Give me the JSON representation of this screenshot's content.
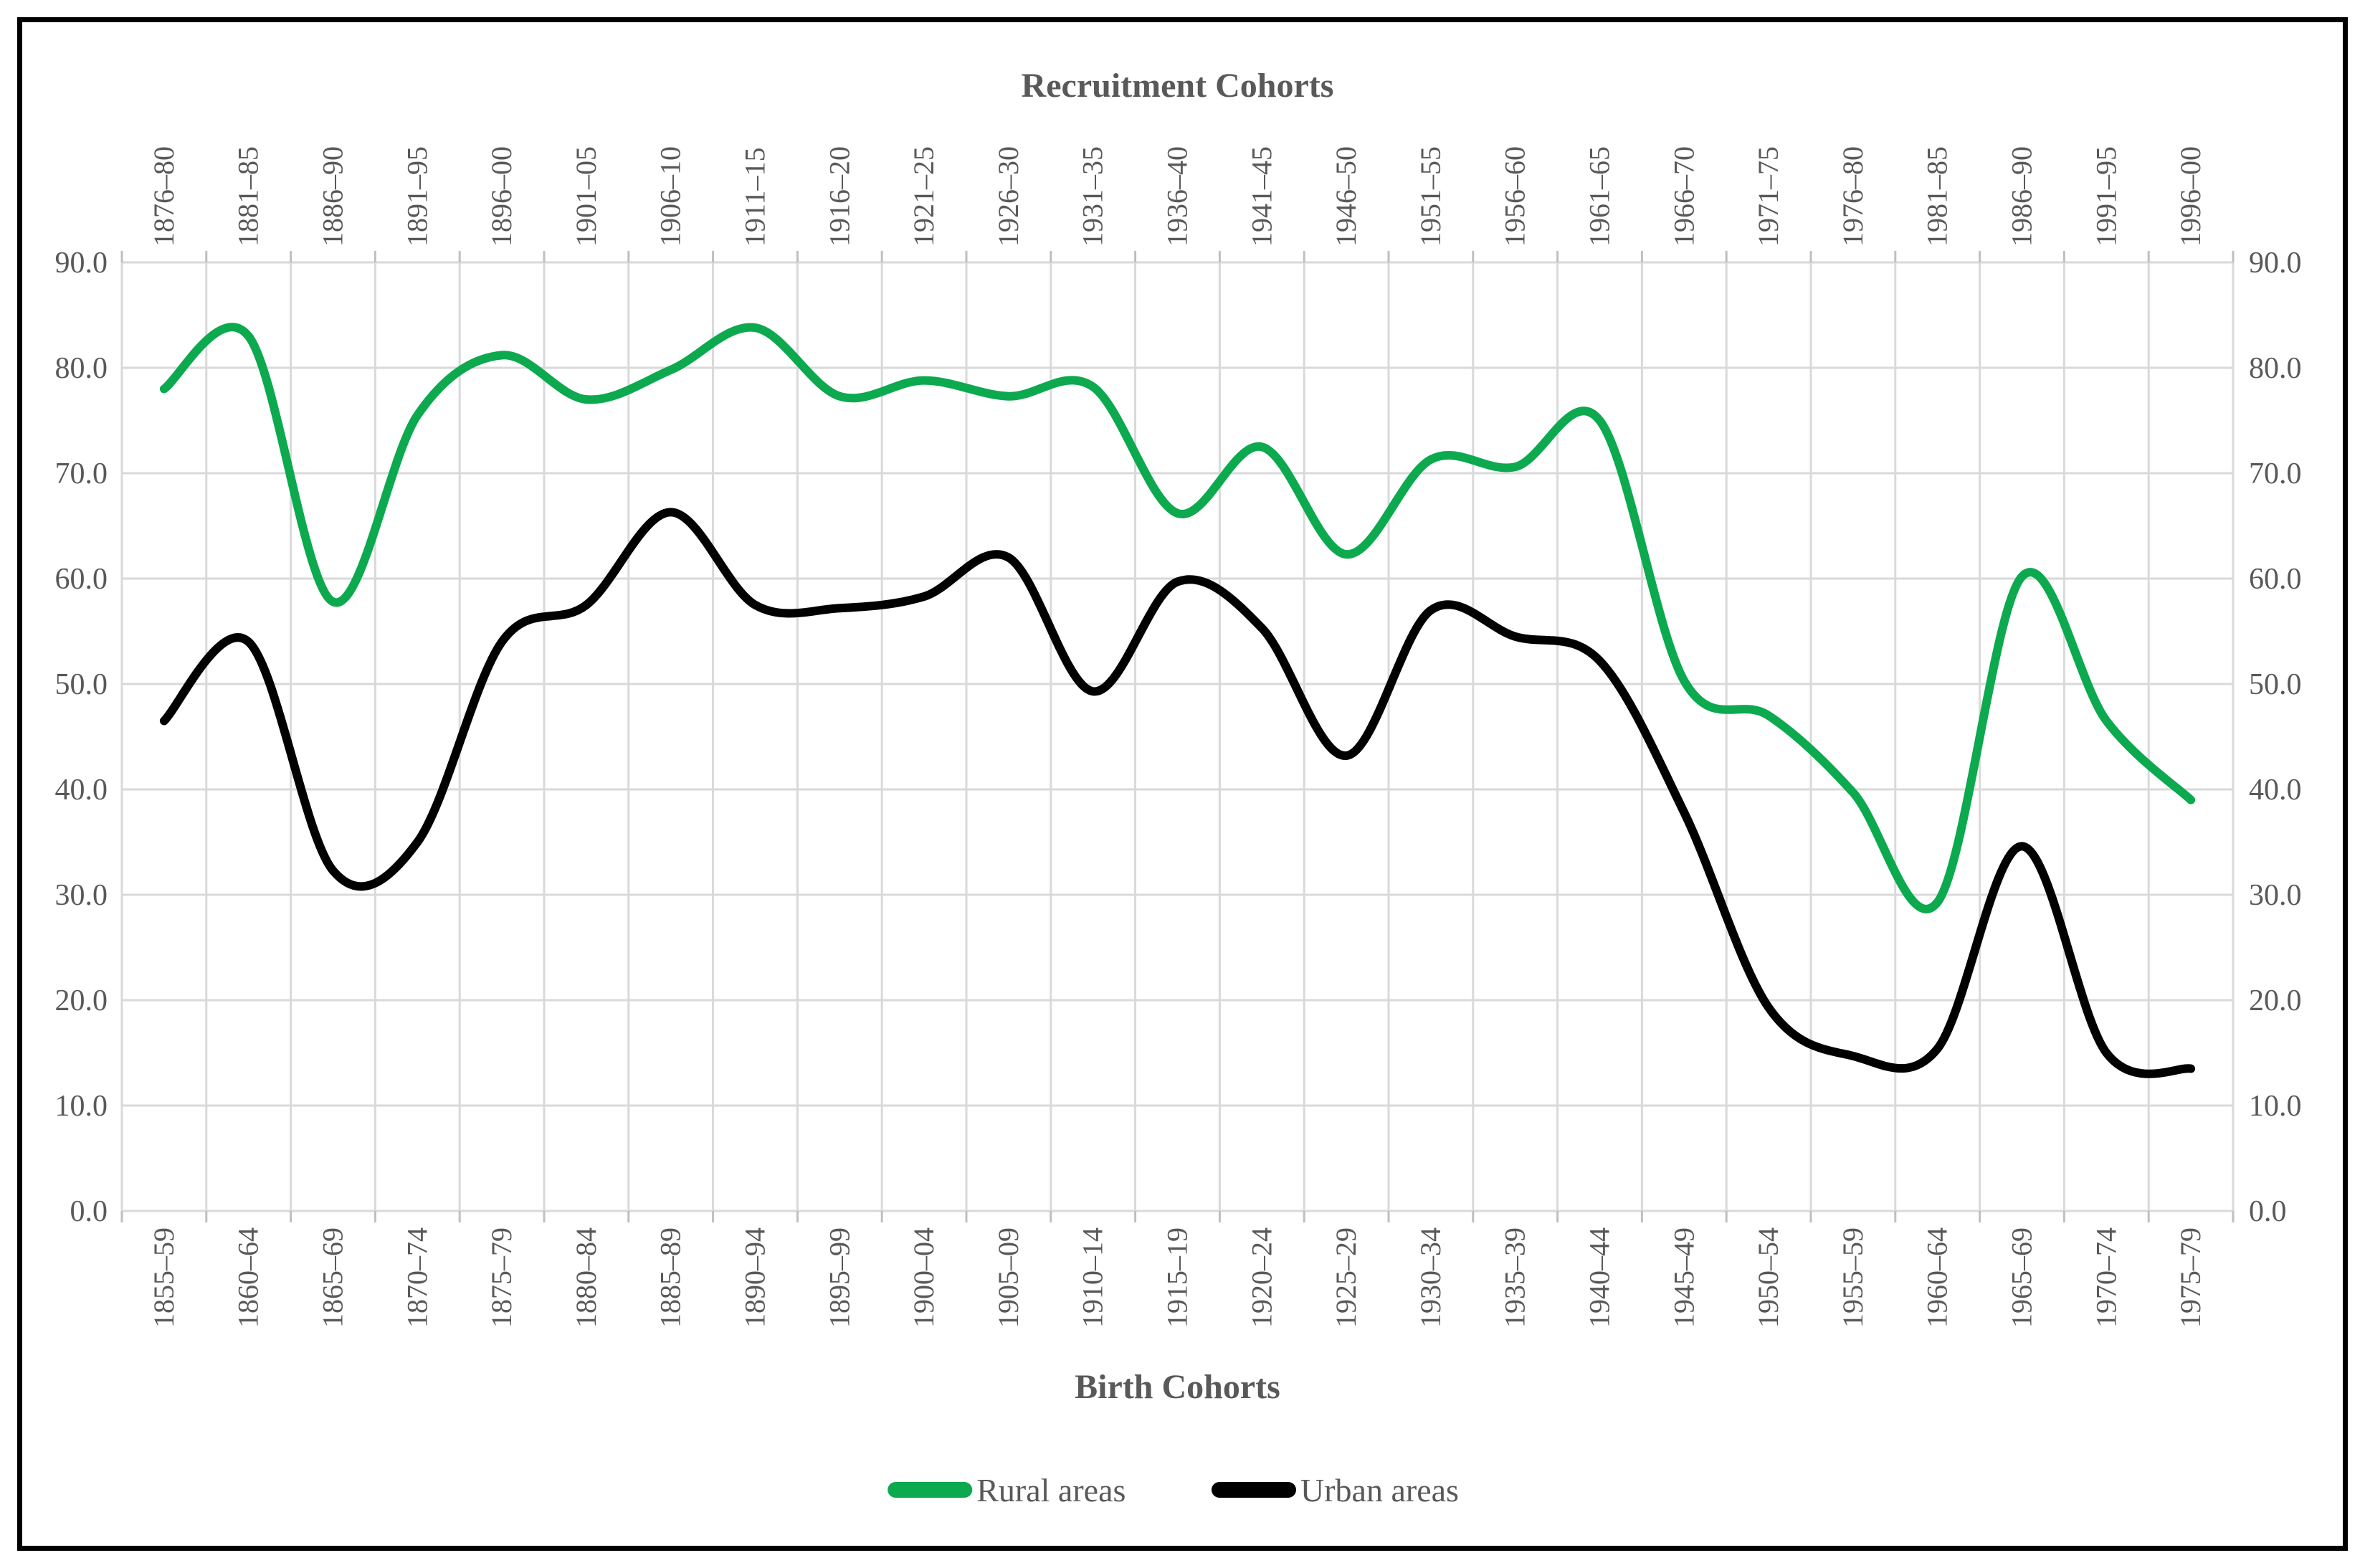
{
  "chart_data": {
    "type": "line",
    "smoothed": true,
    "title_top": "Recruitment Cohorts",
    "title_bottom": "Birth Cohorts",
    "categories_bottom": [
      "1855–59",
      "1860–64",
      "1865–69",
      "1870–74",
      "1875–79",
      "1880–84",
      "1885–89",
      "1890–94",
      "1895–99",
      "1900–04",
      "1905–09",
      "1910–14",
      "1915–19",
      "1920–24",
      "1925–29",
      "1930–34",
      "1935–39",
      "1940–44",
      "1945–49",
      "1950–54",
      "1955–59",
      "1960–64",
      "1965–69",
      "1970–74",
      "1975–79"
    ],
    "categories_top": [
      "1876–80",
      "1881–85",
      "1886–90",
      "1891–95",
      "1896–00",
      "1901–05",
      "1906–10",
      "1911–15",
      "1916–20",
      "1921–25",
      "1926–30",
      "1931–35",
      "1936–40",
      "1941–45",
      "1946–50",
      "1951–55",
      "1956–60",
      "1961–65",
      "1966–70",
      "1971–75",
      "1976–80",
      "1981–85",
      "1986–90",
      "1991–95",
      "1996–00"
    ],
    "series": [
      {
        "name": "Rural areas",
        "color": "#0CA94F",
        "values": [
          78.0,
          83.0,
          57.8,
          75.5,
          81.2,
          77.0,
          79.8,
          83.8,
          77.3,
          78.8,
          77.3,
          78.2,
          66.2,
          72.5,
          62.3,
          71.3,
          70.6,
          75.0,
          50.3,
          47.0,
          39.7,
          29.3,
          60.2,
          46.5,
          39.0
        ]
      },
      {
        "name": "Urban areas",
        "color": "#000000",
        "values": [
          46.5,
          54.0,
          32.3,
          35.0,
          54.0,
          57.5,
          66.3,
          57.5,
          57.2,
          58.3,
          62.0,
          49.3,
          59.7,
          55.3,
          43.2,
          57.0,
          54.5,
          52.2,
          37.8,
          19.3,
          14.7,
          15.4,
          34.6,
          15.0,
          13.5
        ]
      }
    ],
    "y_axis": {
      "min": 0,
      "max": 90,
      "step": 10,
      "labels": [
        "0.0",
        "10.0",
        "20.0",
        "30.0",
        "40.0",
        "50.0",
        "60.0",
        "70.0",
        "80.0",
        "90.0"
      ],
      "sides": [
        "left",
        "right"
      ]
    },
    "grid": true,
    "legend_position": "bottom",
    "colors": {
      "text": "#595959",
      "grid": "#D9D9D9",
      "tick": "#BFBFBF"
    }
  }
}
